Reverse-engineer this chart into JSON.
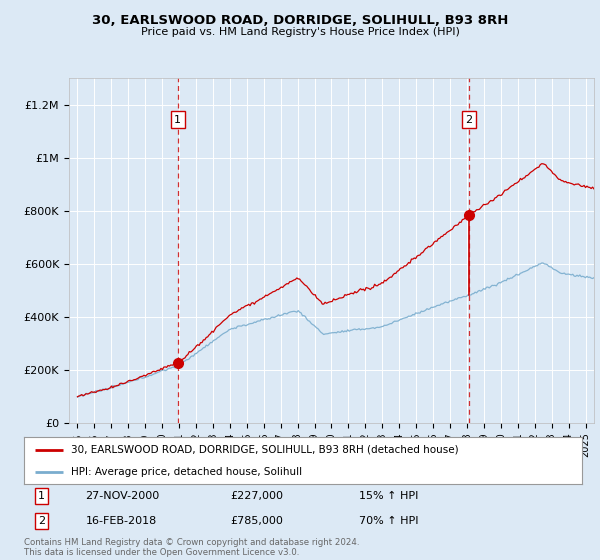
{
  "title": "30, EARLSWOOD ROAD, DORRIDGE, SOLIHULL, B93 8RH",
  "subtitle": "Price paid vs. HM Land Registry's House Price Index (HPI)",
  "background_color": "#dce9f5",
  "plot_bg_color": "#dce9f5",
  "red_line_color": "#cc0000",
  "blue_line_color": "#7aadce",
  "marker_color": "#cc0000",
  "annotation_box_color": "#ffffff",
  "annotation_border_color": "#cc0000",
  "vline_color": "#cc0000",
  "ylim": [
    0,
    1300000
  ],
  "yticks": [
    0,
    200000,
    400000,
    600000,
    800000,
    1000000,
    1200000
  ],
  "ytick_labels": [
    "£0",
    "£200K",
    "£400K",
    "£600K",
    "£800K",
    "£1M",
    "£1.2M"
  ],
  "sale1_date_num": 2000.92,
  "sale1_price": 227000,
  "sale1_label": "1",
  "sale1_date_str": "27-NOV-2000",
  "sale1_price_str": "£227,000",
  "sale1_hpi_str": "15% ↑ HPI",
  "sale2_date_num": 2018.12,
  "sale2_price": 785000,
  "sale2_label": "2",
  "sale2_date_str": "16-FEB-2018",
  "sale2_price_str": "£785,000",
  "sale2_hpi_str": "70% ↑ HPI",
  "legend_label_red": "30, EARLSWOOD ROAD, DORRIDGE, SOLIHULL, B93 8RH (detached house)",
  "legend_label_blue": "HPI: Average price, detached house, Solihull",
  "footer": "Contains HM Land Registry data © Crown copyright and database right 2024.\nThis data is licensed under the Open Government Licence v3.0.",
  "xlim_start": 1994.5,
  "xlim_end": 2025.5
}
